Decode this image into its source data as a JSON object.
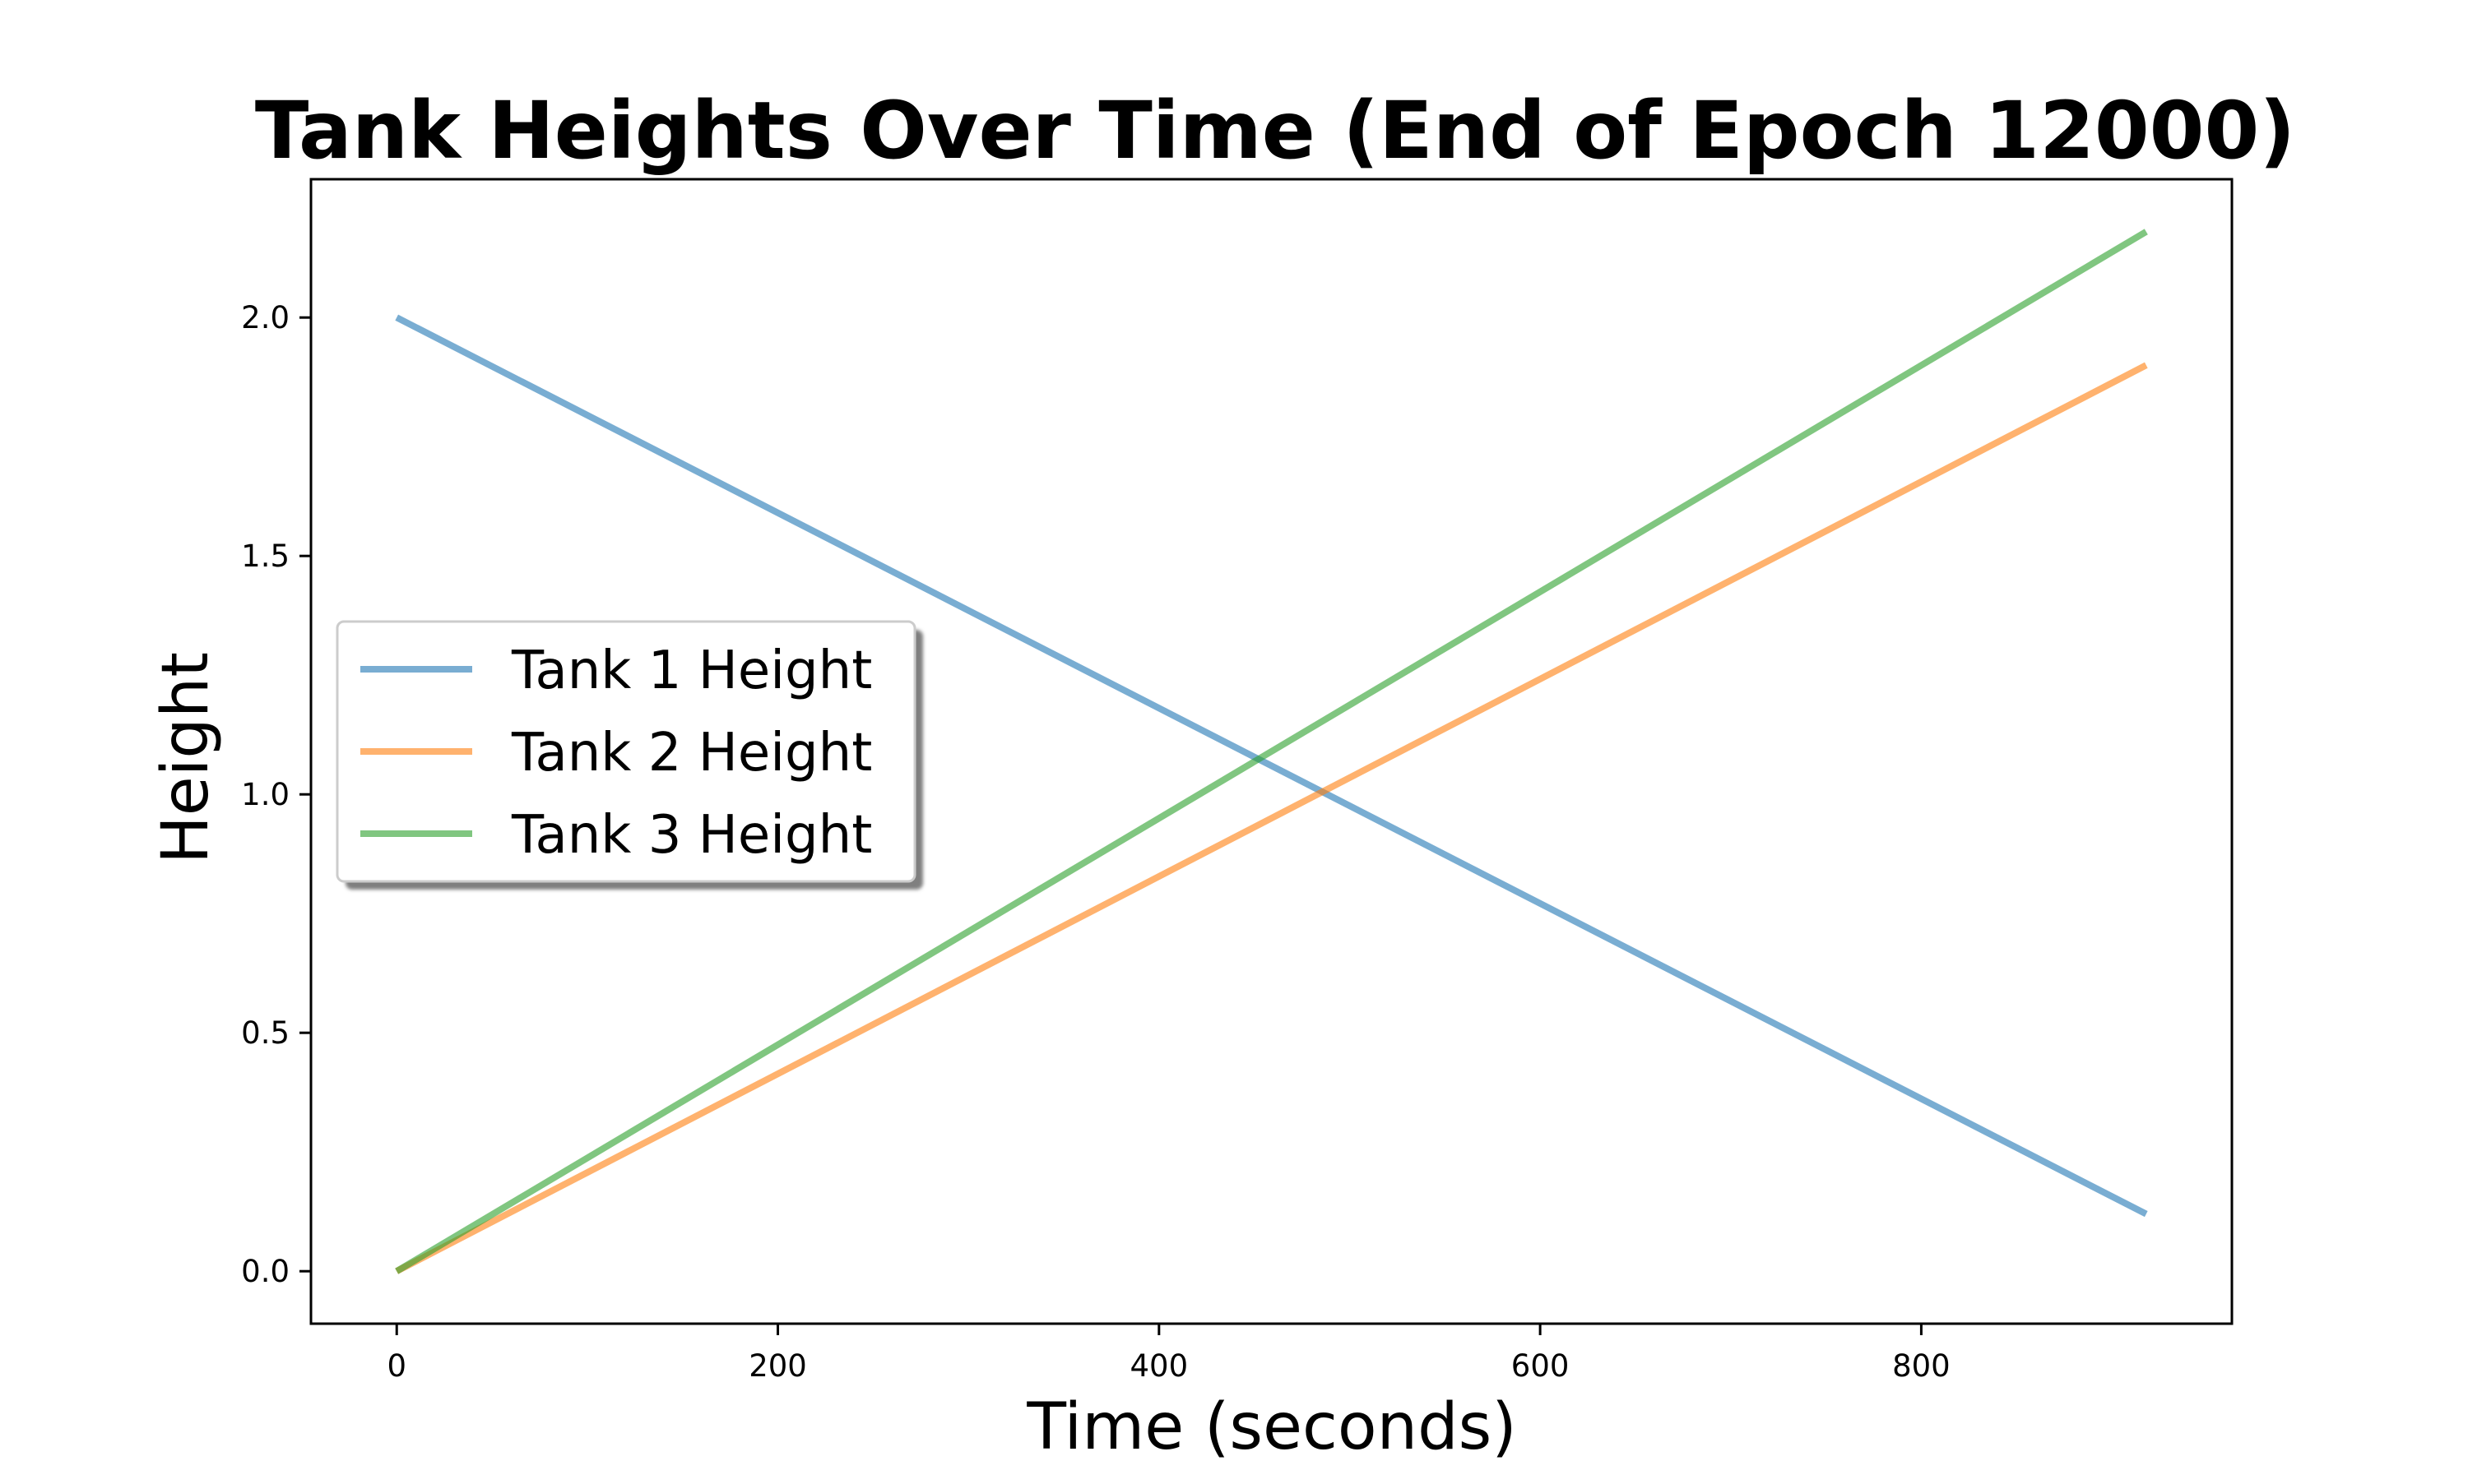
{
  "chart_data": {
    "type": "line",
    "title": "Tank Heights Over Time (End of Epoch 12000)",
    "xlabel": "Time (seconds)",
    "ylabel": "Height",
    "xlim": [
      -45,
      963
    ],
    "ylim": [
      -0.11,
      2.29
    ],
    "xticks": [
      0,
      200,
      400,
      600,
      800
    ],
    "xtick_labels": [
      "0",
      "200",
      "400",
      "600",
      "800"
    ],
    "yticks": [
      0.0,
      0.5,
      1.0,
      1.5,
      2.0
    ],
    "ytick_labels": [
      "0.0",
      "0.5",
      "1.0",
      "1.5",
      "2.0"
    ],
    "grid": false,
    "legend_position": "center-left",
    "series": [
      {
        "name": "Tank 1 Height",
        "color": "#1f77b4",
        "x": [
          0,
          918
        ],
        "y": [
          2.0,
          0.12
        ]
      },
      {
        "name": "Tank 2 Height",
        "color": "#ff7f0e",
        "x": [
          0,
          918
        ],
        "y": [
          0.0,
          1.9
        ]
      },
      {
        "name": "Tank 3 Height",
        "color": "#2ca02c",
        "x": [
          0,
          918
        ],
        "y": [
          0.0,
          2.18
        ]
      }
    ]
  }
}
